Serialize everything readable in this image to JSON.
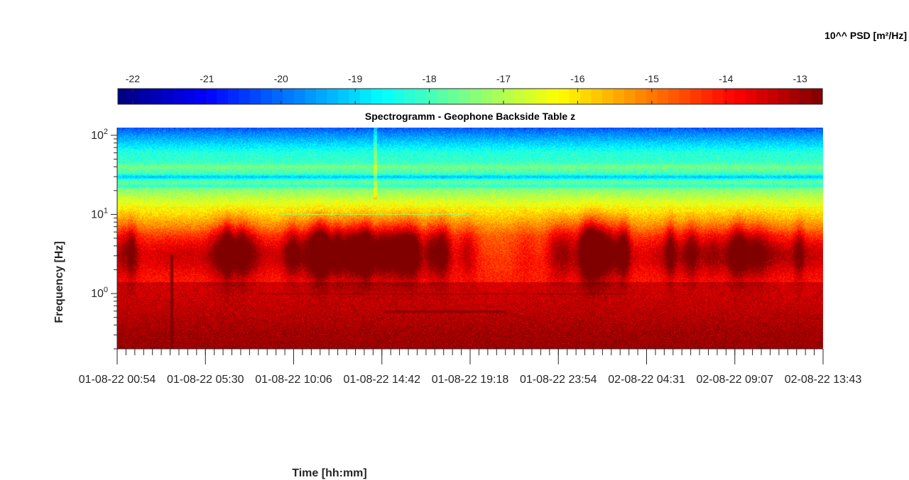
{
  "chart_data": {
    "type": "heatmap",
    "title": "Spectrogramm - Geophone Backside Table z",
    "xlabel": "Time [hh:mm]",
    "ylabel": "Frequency [Hz]",
    "colorbar_label": "10^^ PSD [m²/Hz]",
    "colormap": "jet",
    "colorbar_range": [
      -22.2,
      -12.7
    ],
    "colorbar_ticks": [
      "-22",
      "-21",
      "-20",
      "-19",
      "-18",
      "-17",
      "-16",
      "-15",
      "-14",
      "-13"
    ],
    "colorbar_tick_values": [
      -22,
      -21,
      -20,
      -19,
      -18,
      -17,
      -16,
      -15,
      -14,
      -13
    ],
    "y_scale": "log",
    "ylim": [
      0.2,
      125
    ],
    "y_ticks": [
      {
        "base": "10",
        "exp": "0",
        "value": 1
      },
      {
        "base": "10",
        "exp": "1",
        "value": 10
      },
      {
        "base": "10",
        "exp": "2",
        "value": 100
      }
    ],
    "x_ticks": [
      "01-08-22 00:54",
      "01-08-22 05:30",
      "01-08-22 10:06",
      "01-08-22 14:42",
      "01-08-22 19:18",
      "01-08-22 23:54",
      "02-08-22 04:31",
      "02-08-22 09:07",
      "02-08-22 13:43"
    ],
    "grid": false
  }
}
